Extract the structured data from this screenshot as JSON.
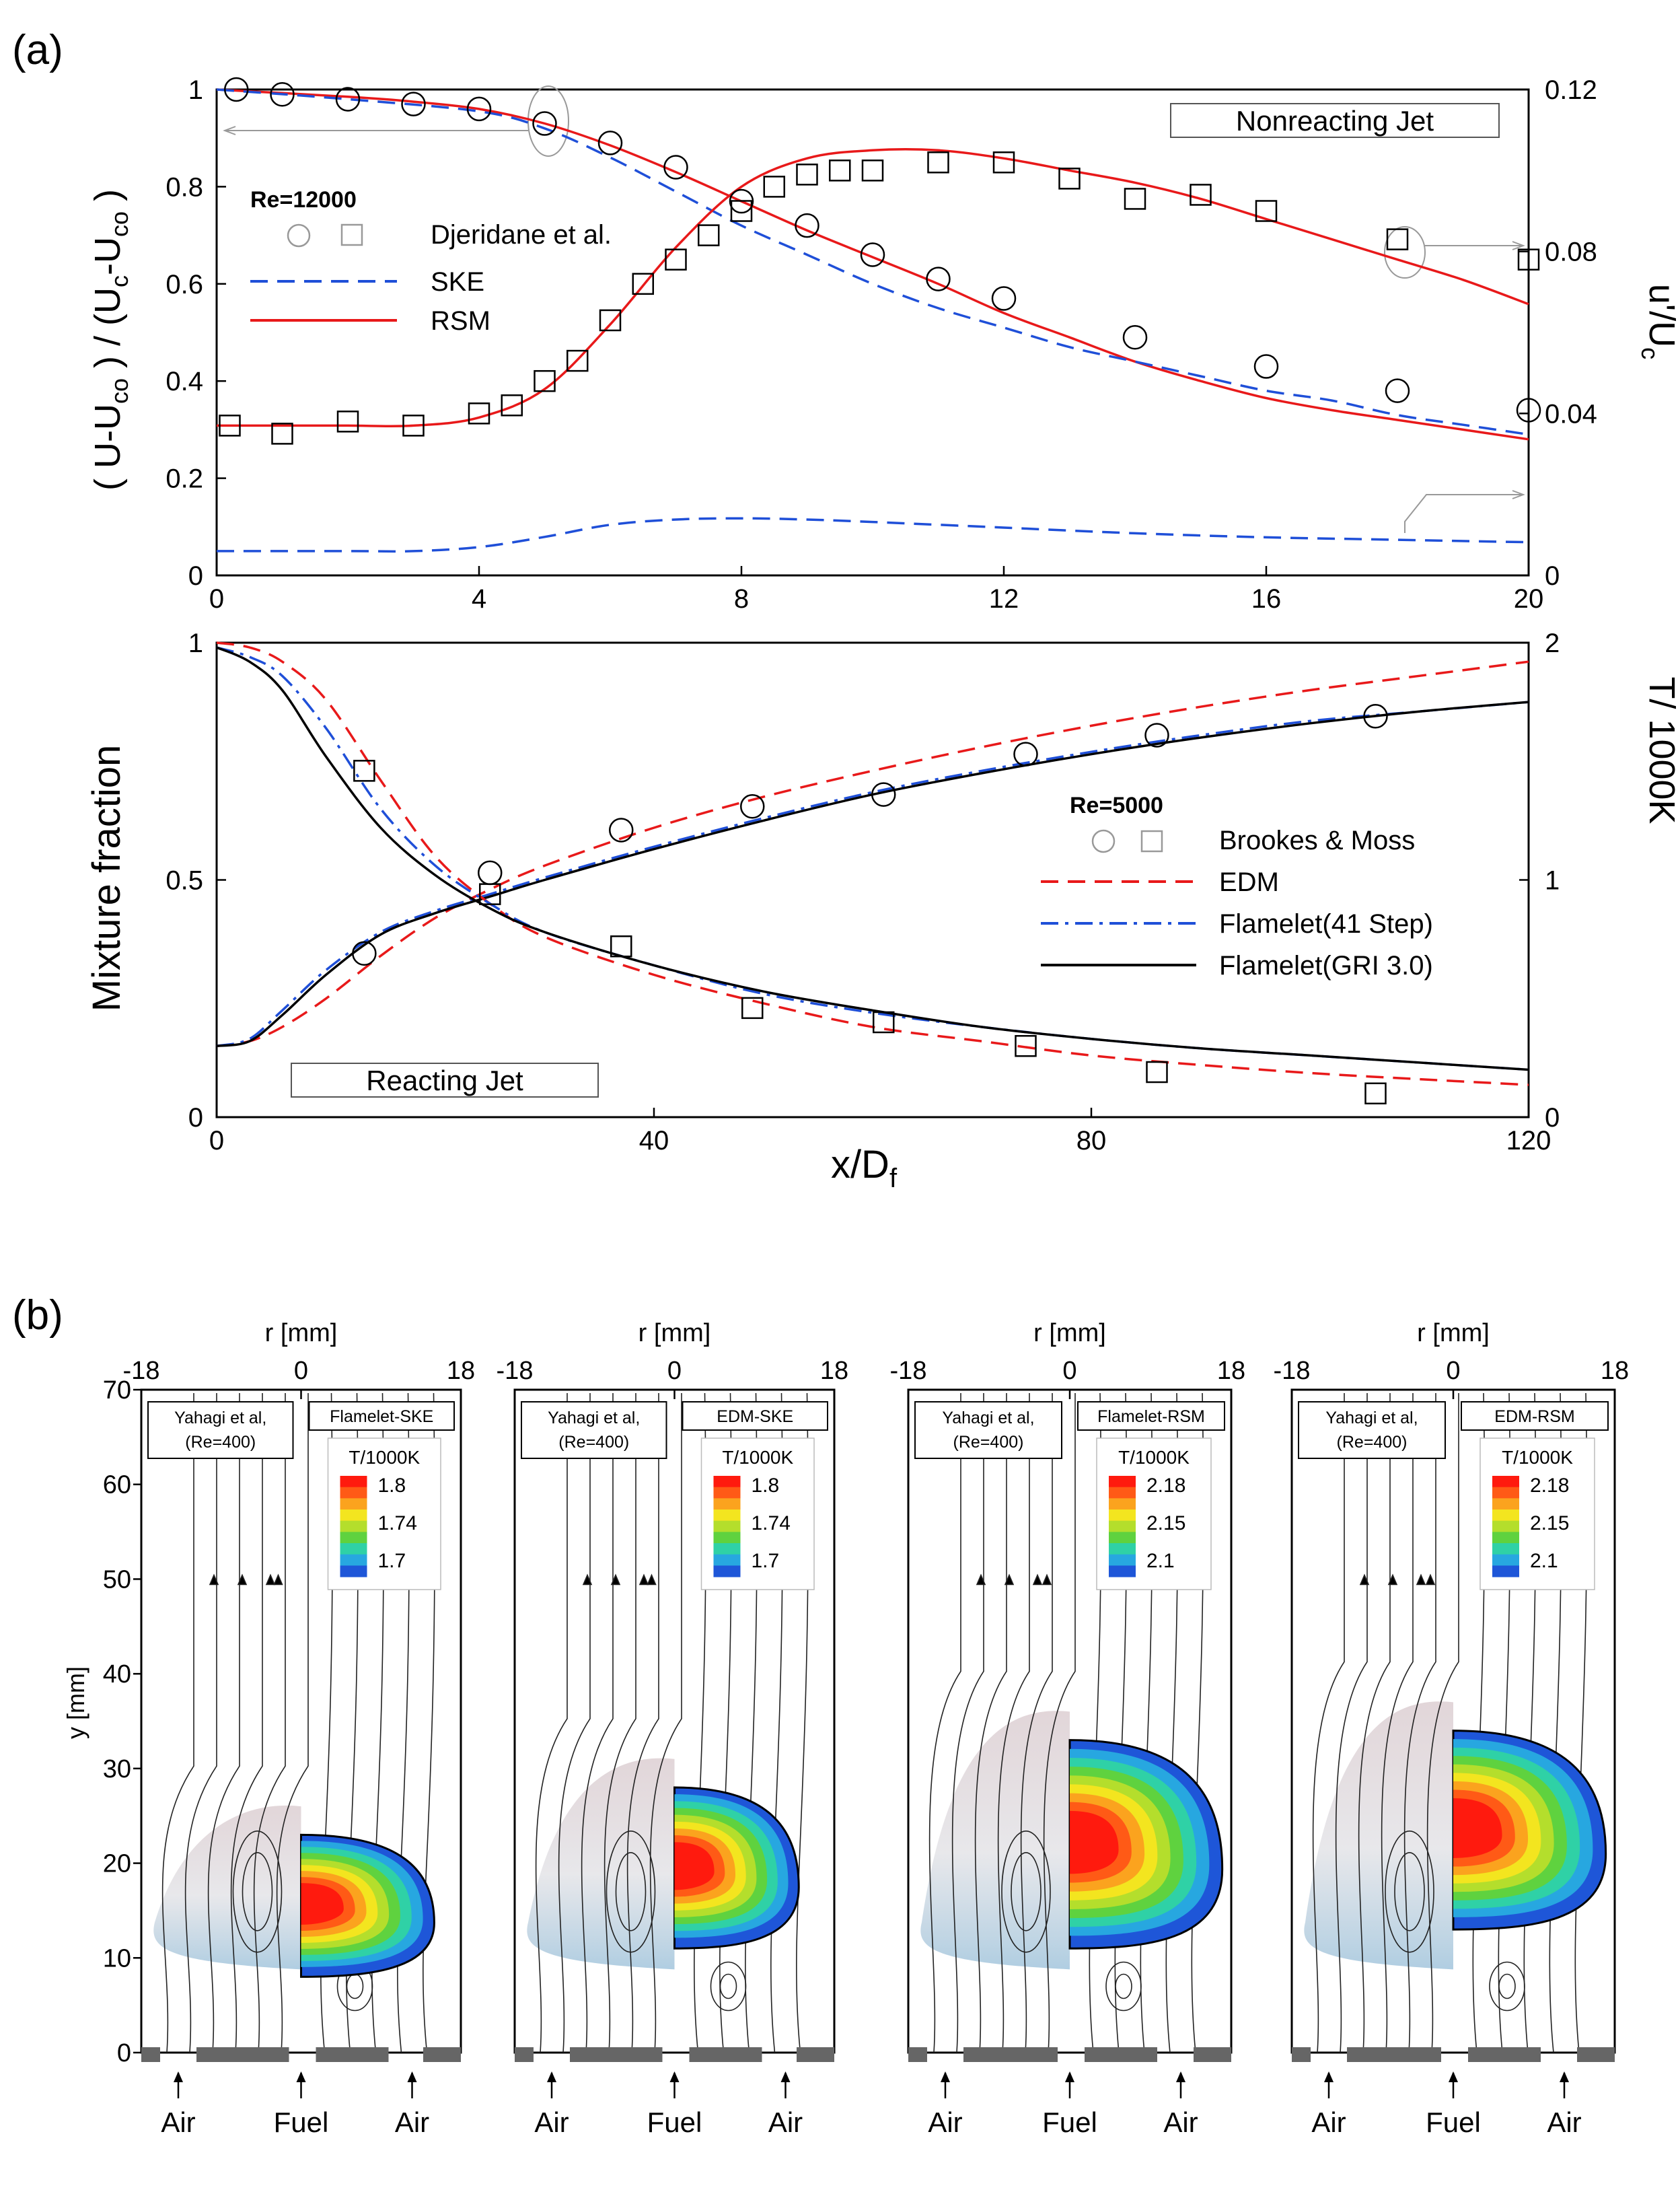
{
  "figure": {
    "panel_a_label": "(a)",
    "panel_b_label": "(b)"
  },
  "chart_data": [
    {
      "id": "nonreacting",
      "type": "line",
      "box_label": "Nonreacting Jet",
      "legend_title": "Re=12000",
      "legend_experiment": "Djeridane et al.",
      "legend_ske": "SKE",
      "legend_rsm": "RSM",
      "ylabel": "( U-U",
      "ylabel_sub1": "co",
      "ylabel_mid": " ) / (U",
      "ylabel_sub2": "c",
      "ylabel_mid2": "-U",
      "ylabel_sub3": "co",
      "ylabel_end": " )",
      "y2label": "u'/U",
      "y2label_sub": "c",
      "xlim": [
        0,
        20
      ],
      "ylim": [
        0,
        1
      ],
      "y2lim": [
        0,
        0.12
      ],
      "xticks": [
        "0",
        "4",
        "8",
        "12",
        "16",
        "20"
      ],
      "yticks": [
        "0",
        "0.2",
        "0.4",
        "0.6",
        "0.8",
        "1"
      ],
      "y2ticks": [
        "0",
        "0.04",
        "0.08",
        "0.12"
      ],
      "series": [
        {
          "name": "Djeridane et al. (U)",
          "marker": "circle",
          "axis": "left",
          "x": [
            0.3,
            1,
            2,
            3,
            4,
            5,
            6,
            7,
            8,
            9,
            10,
            11,
            12,
            14,
            16,
            18,
            20
          ],
          "y": [
            1.0,
            0.99,
            0.98,
            0.97,
            0.96,
            0.93,
            0.89,
            0.84,
            0.77,
            0.72,
            0.66,
            0.61,
            0.57,
            0.49,
            0.43,
            0.38,
            0.34
          ]
        },
        {
          "name": "Djeridane et al. (u')",
          "marker": "square",
          "axis": "right",
          "x": [
            0.2,
            1,
            2,
            3,
            4,
            4.5,
            5,
            5.5,
            6,
            6.5,
            7,
            7.5,
            8,
            8.5,
            9,
            9.5,
            10,
            11,
            12,
            13,
            14,
            15,
            16,
            18,
            20
          ],
          "y": [
            0.037,
            0.035,
            0.038,
            0.037,
            0.04,
            0.042,
            0.048,
            0.053,
            0.063,
            0.072,
            0.078,
            0.084,
            0.09,
            0.096,
            0.099,
            0.1,
            0.1,
            0.102,
            0.102,
            0.098,
            0.093,
            0.094,
            0.09,
            0.083,
            0.078
          ]
        },
        {
          "name": "RSM (U)",
          "style": "solid-red",
          "axis": "left",
          "x": [
            0,
            2,
            3,
            4,
            5,
            6,
            7,
            8,
            9,
            10,
            11,
            12,
            13,
            14,
            15,
            16,
            17,
            18,
            19,
            20
          ],
          "y": [
            1.0,
            0.985,
            0.975,
            0.96,
            0.93,
            0.885,
            0.83,
            0.77,
            0.71,
            0.655,
            0.6,
            0.54,
            0.49,
            0.44,
            0.4,
            0.365,
            0.34,
            0.32,
            0.3,
            0.28
          ]
        },
        {
          "name": "SKE (U)",
          "style": "dashed-blue",
          "axis": "left",
          "x": [
            0,
            2,
            4,
            5,
            6,
            7,
            8,
            9,
            10,
            11,
            12,
            13,
            14,
            15,
            16,
            17,
            18,
            19,
            20
          ],
          "y": [
            1.0,
            0.98,
            0.955,
            0.92,
            0.86,
            0.79,
            0.72,
            0.66,
            0.6,
            0.55,
            0.51,
            0.47,
            0.44,
            0.41,
            0.38,
            0.36,
            0.33,
            0.31,
            0.29
          ]
        },
        {
          "name": "RSM (u')",
          "style": "solid-red",
          "axis": "right",
          "x": [
            0,
            1,
            2,
            3,
            4,
            5,
            6,
            7,
            8,
            9,
            10,
            11,
            12,
            13,
            14,
            15,
            16,
            17,
            18,
            19,
            20
          ],
          "y": [
            0.037,
            0.037,
            0.037,
            0.037,
            0.039,
            0.046,
            0.062,
            0.081,
            0.096,
            0.103,
            0.105,
            0.105,
            0.103,
            0.1,
            0.097,
            0.093,
            0.088,
            0.083,
            0.078,
            0.073,
            0.067
          ]
        },
        {
          "name": "SKE (u')",
          "style": "dashed-blue",
          "axis": "right",
          "x": [
            0,
            2,
            3,
            4,
            5,
            6,
            7,
            8,
            9,
            10,
            12,
            14,
            16,
            18,
            20
          ],
          "y": [
            0.006,
            0.006,
            0.006,
            0.007,
            0.0095,
            0.0125,
            0.0138,
            0.0141,
            0.0138,
            0.0132,
            0.0118,
            0.0104,
            0.0094,
            0.0088,
            0.0082
          ]
        }
      ]
    },
    {
      "id": "reacting",
      "type": "line",
      "box_label": "Reacting Jet",
      "legend_title": "Re=5000",
      "legend_experiment": "Brookes & Moss",
      "legend_edm": "EDM",
      "legend_flamelet41": "Flamelet(41 Step)",
      "legend_gri": "Flamelet(GRI 3.0)",
      "ylabel": "Mixture fraction",
      "y2label": "T/ 1000K",
      "xlabel": "x/D",
      "xlabel_sub": "f",
      "xlim": [
        0,
        120
      ],
      "ylim": [
        0,
        1
      ],
      "y2lim": [
        0,
        2
      ],
      "xticks": [
        "0",
        "40",
        "80",
        "120"
      ],
      "yticks": [
        "0",
        "0.5",
        "1"
      ],
      "y2ticks": [
        "0",
        "1",
        "2"
      ],
      "series": [
        {
          "name": "Brookes & Moss (T)",
          "marker": "circle",
          "axis": "right",
          "x": [
            13.5,
            25,
            37,
            49,
            61,
            74,
            86,
            106
          ],
          "y": [
            0.69,
            1.03,
            1.21,
            1.31,
            1.36,
            1.53,
            1.61,
            1.69
          ]
        },
        {
          "name": "Brookes & Moss (mixture fraction)",
          "marker": "square",
          "axis": "left",
          "x": [
            13.5,
            25,
            37,
            49,
            61,
            74,
            86,
            106
          ],
          "y": [
            0.73,
            0.47,
            0.36,
            0.23,
            0.2,
            0.15,
            0.095,
            0.05
          ]
        },
        {
          "name": "EDM (T)",
          "style": "dashed-red",
          "axis": "right",
          "x": [
            0,
            3,
            6,
            10,
            15,
            20,
            25,
            30,
            40,
            50,
            60,
            70,
            80,
            90,
            100,
            110,
            120
          ],
          "y": [
            0.3,
            0.32,
            0.38,
            0.5,
            0.68,
            0.84,
            0.96,
            1.06,
            1.22,
            1.35,
            1.46,
            1.56,
            1.65,
            1.73,
            1.8,
            1.86,
            1.92
          ]
        },
        {
          "name": "Flamelet 41 Step (T)",
          "style": "dashdot-blue",
          "axis": "right",
          "x": [
            0,
            3,
            6,
            10,
            15,
            20,
            25,
            30,
            40,
            50,
            60,
            70,
            80,
            90,
            100,
            110,
            120
          ],
          "y": [
            0.3,
            0.33,
            0.45,
            0.62,
            0.78,
            0.87,
            0.94,
            1.01,
            1.14,
            1.26,
            1.37,
            1.46,
            1.54,
            1.61,
            1.67,
            1.71,
            1.75
          ]
        },
        {
          "name": "Flamelet GRI 3.0 (T)",
          "style": "solid-black",
          "axis": "right",
          "x": [
            0,
            3,
            6,
            10,
            15,
            20,
            25,
            30,
            40,
            50,
            60,
            70,
            80,
            90,
            100,
            110,
            120
          ],
          "y": [
            0.3,
            0.32,
            0.43,
            0.6,
            0.77,
            0.86,
            0.93,
            1.0,
            1.13,
            1.25,
            1.36,
            1.45,
            1.53,
            1.6,
            1.66,
            1.71,
            1.75
          ]
        },
        {
          "name": "EDM (mixture fraction)",
          "style": "dashed-red",
          "axis": "left",
          "x": [
            0,
            3,
            6,
            10,
            15,
            20,
            25,
            30,
            40,
            50,
            60,
            70,
            80,
            90,
            100,
            110,
            120
          ],
          "y": [
            1.0,
            0.99,
            0.96,
            0.88,
            0.71,
            0.55,
            0.45,
            0.38,
            0.3,
            0.24,
            0.19,
            0.16,
            0.13,
            0.11,
            0.093,
            0.08,
            0.068
          ]
        },
        {
          "name": "Flamelet 41 Step (mixture fraction)",
          "style": "dashdot-blue",
          "axis": "left",
          "x": [
            0,
            3,
            6,
            10,
            15,
            20,
            25,
            30,
            40,
            50,
            60,
            70,
            80,
            90,
            100,
            110,
            120
          ],
          "y": [
            0.99,
            0.97,
            0.93,
            0.82,
            0.65,
            0.53,
            0.45,
            0.39,
            0.32,
            0.26,
            0.22,
            0.19,
            0.165,
            0.145,
            0.13,
            0.115,
            0.1
          ]
        },
        {
          "name": "Flamelet GRI 3.0 (mixture fraction)",
          "style": "solid-black",
          "axis": "left",
          "x": [
            0,
            3,
            6,
            10,
            15,
            20,
            25,
            30,
            40,
            50,
            60,
            70,
            80,
            90,
            100,
            110,
            120
          ],
          "y": [
            0.99,
            0.96,
            0.9,
            0.76,
            0.61,
            0.51,
            0.44,
            0.39,
            0.32,
            0.265,
            0.225,
            0.19,
            0.165,
            0.145,
            0.13,
            0.115,
            0.1
          ]
        }
      ]
    },
    {
      "id": "flames",
      "type": "heatmap",
      "rlabel": "r [mm]",
      "ylabel": "y [mm]",
      "rticks": [
        "-18",
        "0",
        "18"
      ],
      "yticks": [
        "0",
        "10",
        "20",
        "30",
        "40",
        "50",
        "60",
        "70"
      ],
      "bottom_labels": [
        "Air",
        "Fuel",
        "Air"
      ],
      "experiment_label_1": "Yahagi et al,",
      "experiment_label_2": "(Re=400)",
      "legend_title": "T/1000K",
      "panels": [
        {
          "model": "Flamelet-SKE",
          "levels": [
            "1.8",
            "1.74",
            "1.7"
          ],
          "flame_y_range": [
            8,
            23
          ],
          "flame_r_max": 15
        },
        {
          "model": "EDM-SKE",
          "levels": [
            "1.8",
            "1.74",
            "1.7"
          ],
          "flame_y_range": [
            11,
            28
          ],
          "flame_r_max": 14
        },
        {
          "model": "Flamelet-RSM",
          "levels": [
            "2.18",
            "2.15",
            "2.1"
          ],
          "flame_y_range": [
            11,
            33
          ],
          "flame_r_max": 17
        },
        {
          "model": "EDM-RSM",
          "levels": [
            "2.18",
            "2.15",
            "2.1"
          ],
          "flame_y_range": [
            13,
            34
          ],
          "flame_r_max": 17
        }
      ]
    }
  ]
}
